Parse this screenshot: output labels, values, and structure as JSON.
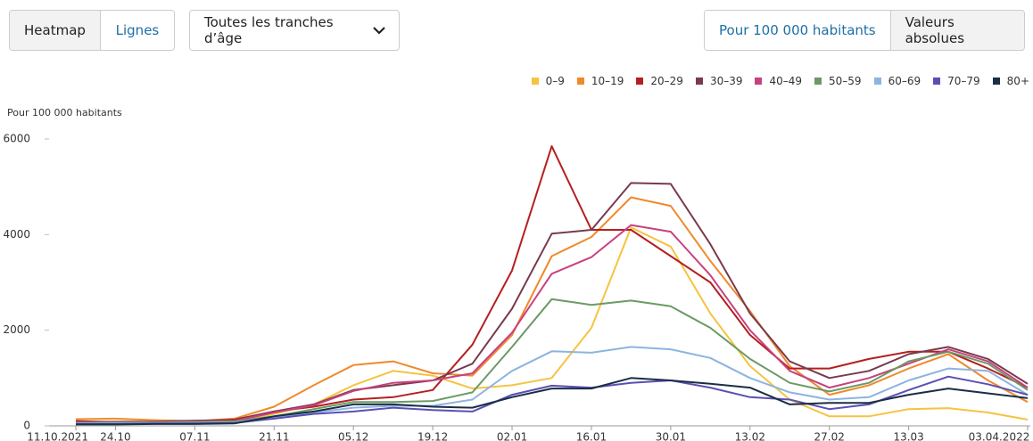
{
  "controls": {
    "view_buttons": [
      "Heatmap",
      "Lignes"
    ],
    "age_select": "Toutes les tranches d’âge",
    "unit_buttons": [
      "Pour 100 000 habitants",
      "Valeurs absolues"
    ]
  },
  "chart_data": {
    "type": "line",
    "y_label": "Pour 100 000 habitants",
    "categories": [
      "11.10.2021",
      "24.10",
      null,
      "07.11",
      null,
      "21.11",
      null,
      "05.12",
      null,
      "19.12",
      null,
      "02.01",
      null,
      "16.01",
      null,
      "30.01",
      null,
      "13.02",
      null,
      "27.02",
      null,
      "13.03",
      null,
      null,
      "03.04.2022"
    ],
    "ylim": [
      0,
      6000
    ],
    "yticks": [
      0,
      2000,
      4000,
      6000
    ],
    "grid": false,
    "legend": "top-right",
    "series": [
      {
        "name": "0–9",
        "color": "#f6c342",
        "values": [
          50,
          60,
          60,
          70,
          80,
          250,
          450,
          850,
          1150,
          1050,
          780,
          850,
          1000,
          2050,
          4150,
          3750,
          2350,
          1250,
          550,
          200,
          200,
          350,
          370,
          280,
          130
        ]
      },
      {
        "name": "10–19",
        "color": "#ef8a2b",
        "values": [
          140,
          150,
          120,
          100,
          150,
          400,
          850,
          1270,
          1350,
          1100,
          1050,
          1900,
          3550,
          3950,
          4780,
          4600,
          3450,
          2400,
          1250,
          650,
          850,
          1200,
          1500,
          950,
          500
        ]
      },
      {
        "name": "20–29",
        "color": "#b51f1f",
        "values": [
          100,
          80,
          80,
          100,
          130,
          300,
          400,
          550,
          600,
          750,
          1700,
          3250,
          5850,
          4100,
          4100,
          3550,
          3000,
          1900,
          1200,
          1200,
          1400,
          1550,
          1550,
          1200,
          800
        ]
      },
      {
        "name": "30–39",
        "color": "#7a3a4e",
        "values": [
          80,
          90,
          90,
          110,
          120,
          300,
          450,
          750,
          850,
          950,
          1300,
          2450,
          4020,
          4100,
          5080,
          5060,
          3800,
          2350,
          1350,
          1000,
          1150,
          1500,
          1650,
          1400,
          880
        ]
      },
      {
        "name": "40–49",
        "color": "#c8417f",
        "values": [
          70,
          80,
          80,
          90,
          100,
          280,
          430,
          730,
          900,
          950,
          1100,
          1950,
          3180,
          3530,
          4200,
          4060,
          3150,
          2000,
          1150,
          800,
          1000,
          1300,
          1600,
          1350,
          800
        ]
      },
      {
        "name": "50–59",
        "color": "#6b9a64",
        "values": [
          60,
          70,
          70,
          80,
          90,
          200,
          350,
          500,
          500,
          520,
          700,
          1650,
          2650,
          2530,
          2620,
          2500,
          2050,
          1400,
          900,
          720,
          900,
          1350,
          1550,
          1300,
          750
        ]
      },
      {
        "name": "60–69",
        "color": "#8cb4e0",
        "values": [
          50,
          50,
          60,
          60,
          70,
          180,
          280,
          380,
          420,
          420,
          550,
          1150,
          1560,
          1530,
          1650,
          1600,
          1420,
          1000,
          700,
          550,
          600,
          950,
          1200,
          1150,
          650
        ]
      },
      {
        "name": "70–79",
        "color": "#5b4fb3",
        "values": [
          40,
          40,
          50,
          50,
          60,
          150,
          250,
          300,
          380,
          330,
          300,
          650,
          840,
          800,
          900,
          950,
          800,
          600,
          550,
          350,
          450,
          750,
          1030,
          870,
          650
        ]
      },
      {
        "name": "80+",
        "color": "#1a2e45",
        "values": [
          30,
          30,
          40,
          40,
          50,
          200,
          300,
          450,
          450,
          400,
          380,
          600,
          780,
          780,
          1000,
          950,
          880,
          800,
          450,
          480,
          480,
          650,
          780,
          680,
          580
        ]
      }
    ]
  }
}
